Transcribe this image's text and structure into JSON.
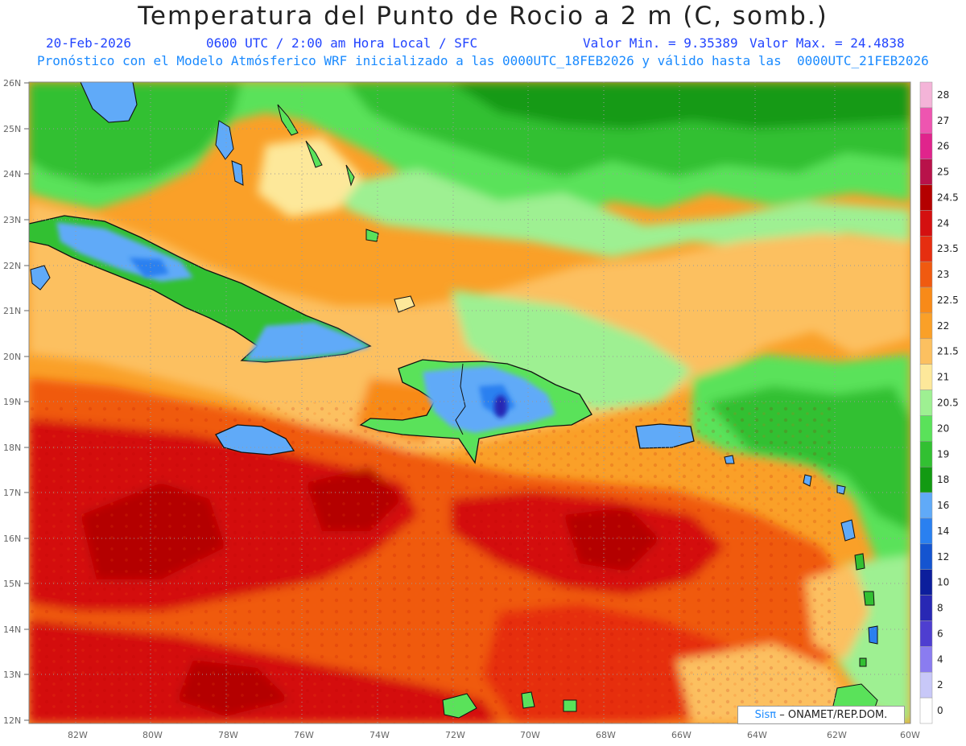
{
  "title": "Temperatura del Punto de Rocio a 2 m (C, somb.)",
  "date": "20-Feb-2026",
  "time_info": "0600 UTC / 2:00 am Hora Local / SFC",
  "min_label": "Valor Min. = 9.35389",
  "max_label": "Valor Max. = 24.4838",
  "model_info": "Pronóstico con el Modelo Atmósferico WRF inicializado a las 0000UTC_18FEB2026 y válido hasta las  0000UTC_21FEB2026",
  "credit": {
    "logo": "Sisπ",
    "text": "– ONAMET/REP.DOM."
  },
  "lat_labels": [
    "26N",
    "25N",
    "24N",
    "23N",
    "22N",
    "21N",
    "20N",
    "19N",
    "18N",
    "17N",
    "16N",
    "15N",
    "14N",
    "13N",
    "12N"
  ],
  "lon_labels": [
    "82W",
    "80W",
    "78W",
    "76W",
    "74W",
    "72W",
    "70W",
    "68W",
    "66W",
    "64W",
    "62W",
    "60W"
  ],
  "colorbar": [
    {
      "label": "28",
      "color": "#f4b4d8"
    },
    {
      "label": "27",
      "color": "#ee55b0"
    },
    {
      "label": "26",
      "color": "#e0248c"
    },
    {
      "label": "25",
      "color": "#b8124a"
    },
    {
      "label": "24.5",
      "color": "#b40000"
    },
    {
      "label": "24",
      "color": "#d41010"
    },
    {
      "label": "23.5",
      "color": "#e62e10"
    },
    {
      "label": "23",
      "color": "#f05a10"
    },
    {
      "label": "22.5",
      "color": "#f88a18"
    },
    {
      "label": "22",
      "color": "#faa028"
    },
    {
      "label": "21.5",
      "color": "#fcc060"
    },
    {
      "label": "21",
      "color": "#fde89a"
    },
    {
      "label": "20.5",
      "color": "#9ef092"
    },
    {
      "label": "20",
      "color": "#5ae25a"
    },
    {
      "label": "19",
      "color": "#32c032"
    },
    {
      "label": "18",
      "color": "#129a12"
    },
    {
      "label": "16",
      "color": "#60aaf8"
    },
    {
      "label": "14",
      "color": "#2a80f0"
    },
    {
      "label": "12",
      "color": "#1454d0"
    },
    {
      "label": "10",
      "color": "#0c1e9c"
    },
    {
      "label": "8",
      "color": "#2828b4"
    },
    {
      "label": "6",
      "color": "#4e3ed0"
    },
    {
      "label": "4",
      "color": "#8a7cf0"
    },
    {
      "label": "2",
      "color": "#c8c8f8"
    },
    {
      "label": "0",
      "color": "#ffffff"
    }
  ]
}
